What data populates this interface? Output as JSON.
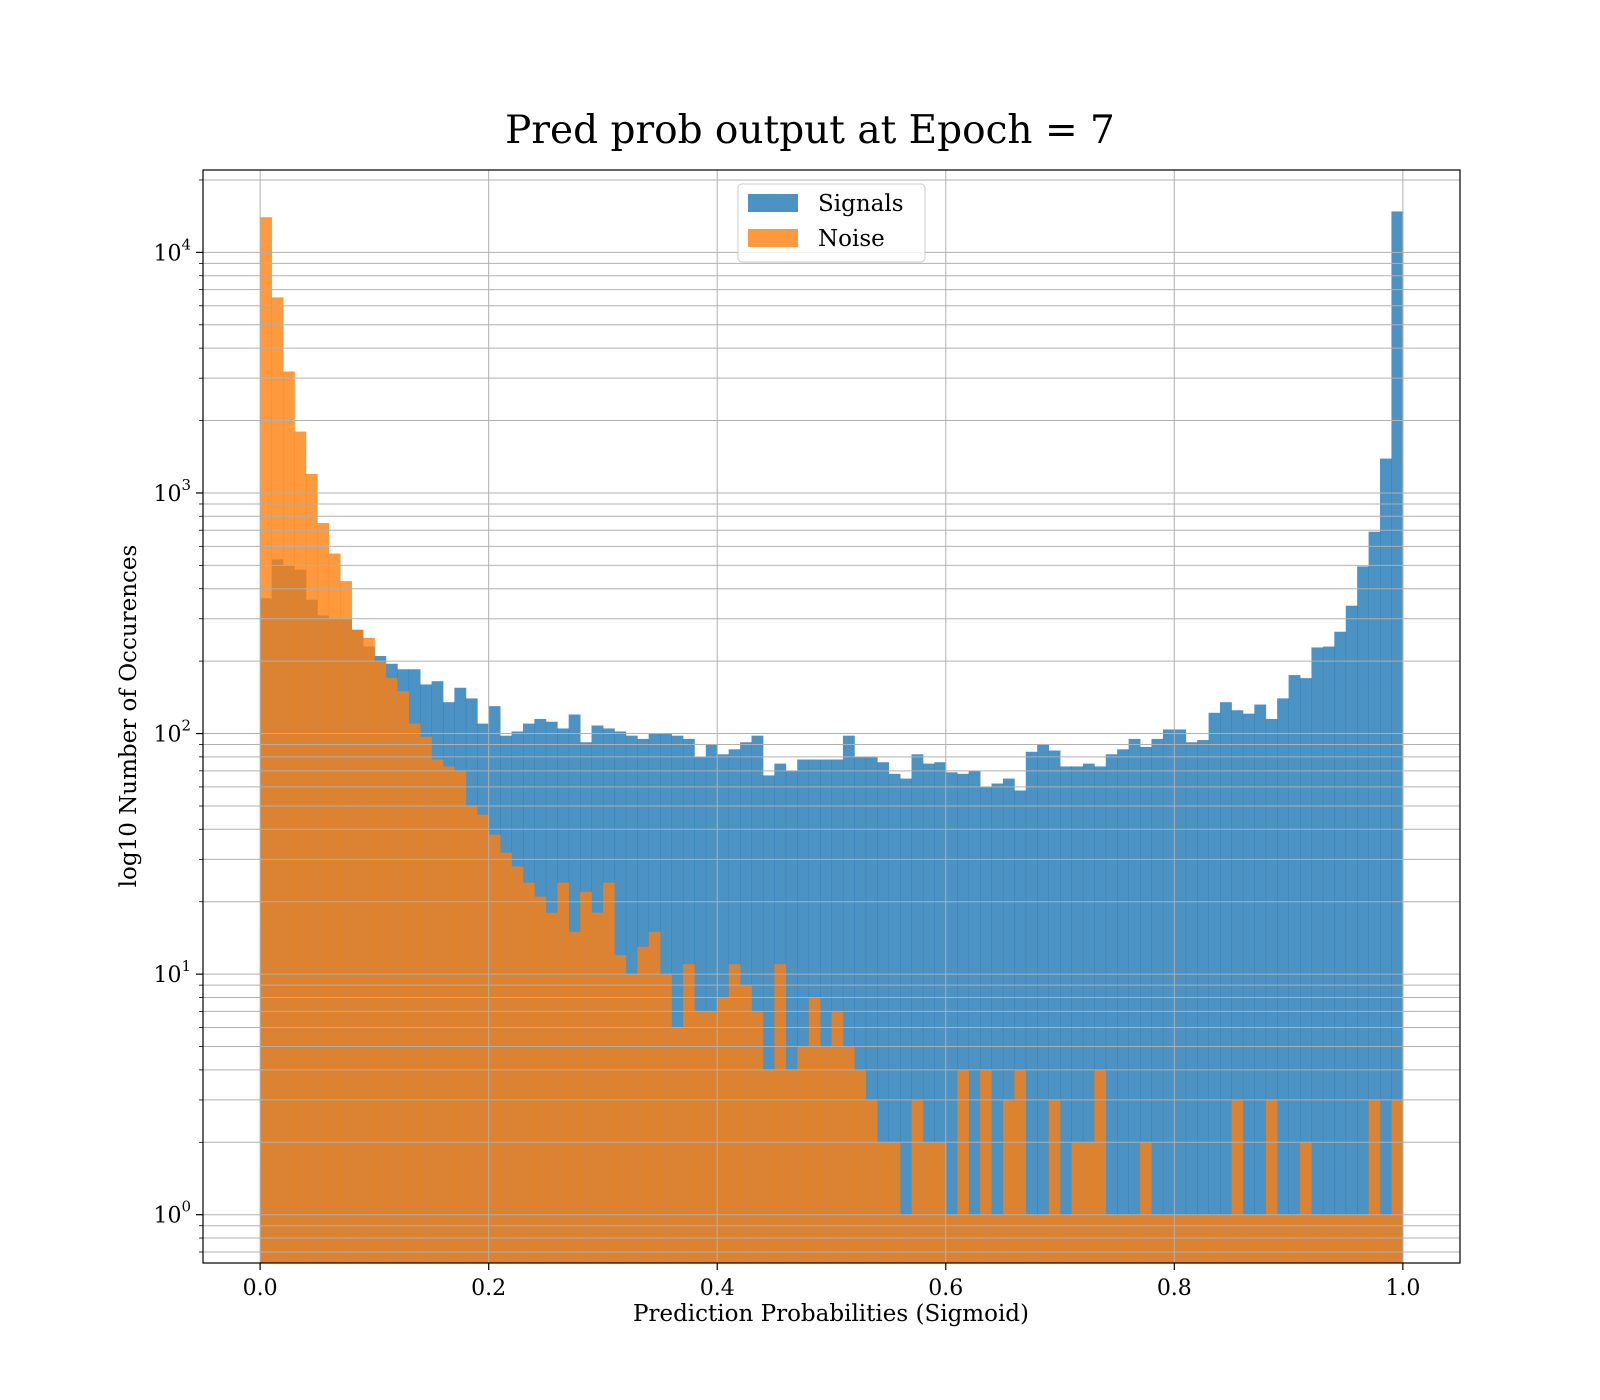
{
  "chart_data": {
    "type": "bar",
    "title": "Pred prob output at Epoch = 7",
    "xlabel": "Prediction Probabilities (Sigmoid)",
    "ylabel": "log10 Number of Occurences",
    "xlim": [
      -0.05,
      1.05
    ],
    "ylim": [
      0.63,
      22000
    ],
    "yscale": "log",
    "grid": true,
    "legend_position": "top-center",
    "bins": {
      "start": 0.0,
      "end": 1.0,
      "count": 100
    },
    "x_ticks": [
      "0.0",
      "0.2",
      "0.4",
      "0.6",
      "0.8",
      "1.0"
    ],
    "y_ticks": [
      {
        "base": "10",
        "exp": "0",
        "value": 1
      },
      {
        "base": "10",
        "exp": "1",
        "value": 10
      },
      {
        "base": "10",
        "exp": "2",
        "value": 100
      },
      {
        "base": "10",
        "exp": "3",
        "value": 1000
      },
      {
        "base": "10",
        "exp": "4",
        "value": 10000
      }
    ],
    "series": [
      {
        "name": "Signals",
        "color": "#1f77b4",
        "values": [
          365,
          530,
          500,
          480,
          360,
          310,
          300,
          300,
          270,
          230,
          210,
          195,
          185,
          185,
          160,
          165,
          135,
          155,
          140,
          110,
          130,
          98,
          102,
          110,
          115,
          112,
          105,
          120,
          92,
          108,
          105,
          102,
          98,
          95,
          100,
          100,
          98,
          95,
          80,
          90,
          82,
          86,
          92,
          98,
          67,
          75,
          70,
          78,
          78,
          78,
          78,
          98,
          80,
          80,
          76,
          68,
          65,
          82,
          75,
          76,
          69,
          68,
          70,
          60,
          62,
          65,
          58,
          84,
          90,
          85,
          73,
          73,
          75,
          73,
          82,
          86,
          95,
          88,
          95,
          104,
          104,
          92,
          94,
          122,
          135,
          125,
          121,
          132,
          115,
          140,
          175,
          170,
          228,
          230,
          265,
          340,
          495,
          690,
          1390,
          14800
        ]
      },
      {
        "name": "Noise",
        "color": "#ff7f0e",
        "values": [
          14000,
          6500,
          3200,
          1800,
          1200,
          750,
          560,
          430,
          270,
          250,
          200,
          170,
          150,
          110,
          97,
          78,
          73,
          70,
          50,
          46,
          38,
          32,
          28,
          24,
          21,
          18,
          24,
          15,
          22,
          18,
          24,
          12,
          10,
          13,
          15,
          10,
          6,
          11,
          7,
          7,
          8,
          11,
          9,
          7,
          4,
          11,
          4,
          5,
          8,
          5,
          7,
          5,
          4,
          3,
          2,
          2,
          1,
          3,
          2,
          2,
          1,
          4,
          1,
          4,
          1,
          3,
          4,
          1,
          1,
          3,
          1,
          2,
          2,
          4,
          1,
          1,
          1,
          2,
          1,
          1,
          1,
          1,
          1,
          1,
          1,
          3,
          1,
          1,
          3,
          1,
          1,
          2,
          1,
          1,
          1,
          1,
          1,
          3,
          1,
          3
        ]
      }
    ]
  }
}
